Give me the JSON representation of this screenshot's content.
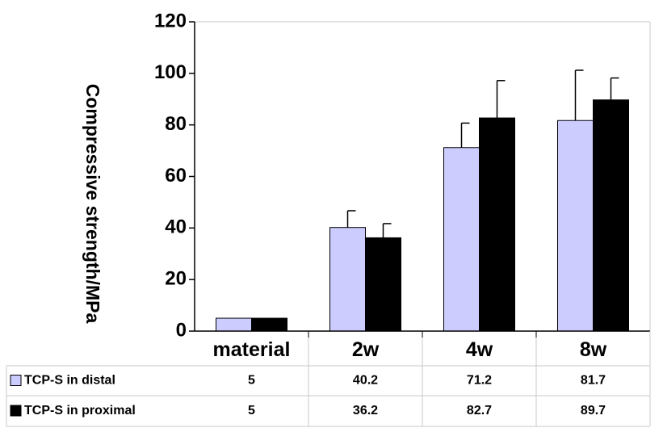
{
  "chart_data": {
    "type": "bar",
    "title": "",
    "xlabel": "",
    "ylabel": "Compressive strength/MPa",
    "ylim": [
      0,
      120
    ],
    "yticks": [
      0,
      20,
      40,
      60,
      80,
      100,
      120
    ],
    "grid": false,
    "legend": "data table below chart",
    "categories": [
      "material",
      "2w",
      "4w",
      "8w"
    ],
    "series": [
      {
        "name": "TCP-S in distal",
        "color": "#ccccff",
        "values": [
          5,
          40.2,
          71.2,
          81.7
        ],
        "error": [
          0,
          6.5,
          9.5,
          19.5
        ],
        "table_values": [
          "5",
          "40.2",
          "71.2",
          "81.7"
        ]
      },
      {
        "name": "TCP-S in proximal",
        "color": "#000000",
        "values": [
          5,
          36.2,
          82.7,
          89.7
        ],
        "error": [
          0,
          5.5,
          14.5,
          8.5
        ],
        "table_values": [
          "5",
          "36.2",
          "82.7",
          "89.7"
        ]
      }
    ]
  }
}
